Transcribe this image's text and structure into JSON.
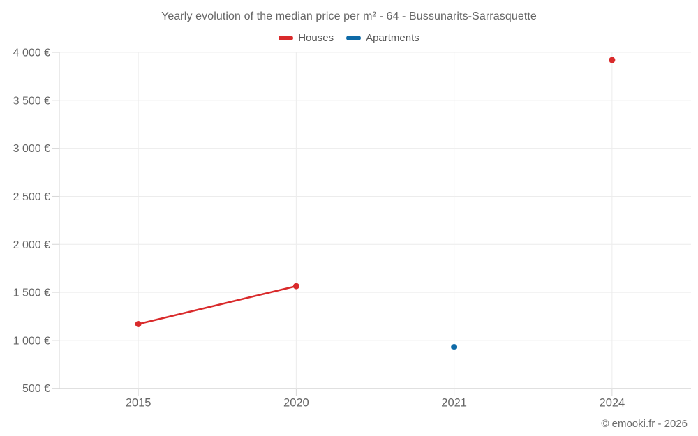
{
  "title": "Yearly evolution of the median price per m² - 64 - Bussunarits-Sarrasquette",
  "footer": "© emooki.fr - 2026",
  "currency_suffix": "€",
  "colors": {
    "houses": "#d92a2b",
    "apartments": "#0e6aa7",
    "grid": "#ececec",
    "axis": "#d6d6d6",
    "tick_label": "#666666",
    "title_text": "#666666",
    "legend_text": "#555555",
    "footer_text": "#6b6b6b"
  },
  "chart_data": {
    "type": "line",
    "title": "Yearly evolution of the median price per m² - 64 - Bussunarits-Sarrasquette",
    "categories": [
      "2015",
      "2020",
      "2021",
      "2024"
    ],
    "series": [
      {
        "name": "Houses",
        "color": "#d92a2b",
        "values": [
          1170,
          1565,
          null,
          3920
        ]
      },
      {
        "name": "Apartments",
        "color": "#0e6aa7",
        "values": [
          null,
          null,
          930,
          null
        ]
      }
    ],
    "xlabel": "",
    "ylabel": "",
    "ylim": [
      500,
      4000
    ],
    "ytick_step": 500,
    "ytick_labels": [
      "500 €",
      "1 000 €",
      "1 500 €",
      "2 000 €",
      "2 500 €",
      "3 000 €",
      "3 500 €",
      "4 000 €"
    ],
    "grid": true,
    "legend_position": "top",
    "marker": "circle",
    "line_breaks_on_null": true
  }
}
